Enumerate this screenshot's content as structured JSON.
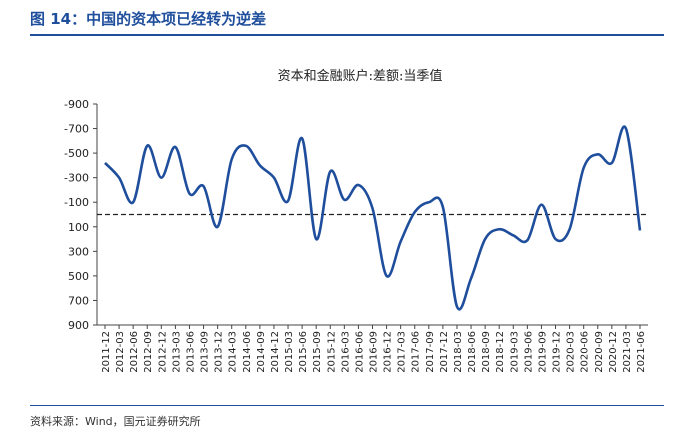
{
  "figure": {
    "title": "图 14：中国的资本项已经转为逆差",
    "source": "资料来源：Wind，国元证券研究所"
  },
  "colors": {
    "accent": "#1f4e9c",
    "series": "#1f4e9c"
  },
  "chart_data": {
    "type": "line",
    "title": "资本和金融账户:差额:当季值",
    "xlabel": "",
    "ylabel": "",
    "y_inverted": true,
    "ylim": [
      -900,
      900
    ],
    "yticks": [
      "-900",
      "-700",
      "-500",
      "-300",
      "-100",
      "100",
      "300",
      "500",
      "700",
      "900"
    ],
    "ytick_values": [
      -900,
      -700,
      -500,
      -300,
      -100,
      100,
      300,
      500,
      700,
      900
    ],
    "zero_line": "dashed",
    "grid": false,
    "legend": "none",
    "x": [
      "2011-12",
      "2012-03",
      "2012-06",
      "2012-09",
      "2012-12",
      "2013-03",
      "2013-06",
      "2013-09",
      "2013-12",
      "2014-03",
      "2014-06",
      "2014-09",
      "2014-12",
      "2015-03",
      "2015-06",
      "2015-09",
      "2015-12",
      "2016-03",
      "2016-06",
      "2016-09",
      "2016-12",
      "2017-03",
      "2017-06",
      "2017-09",
      "2017-12",
      "2018-03",
      "2018-06",
      "2018-09",
      "2018-12",
      "2019-03",
      "2019-06",
      "2019-09",
      "2019-12",
      "2020-03",
      "2020-06",
      "2020-09",
      "2020-12",
      "2021-03",
      "2021-06"
    ],
    "series": [
      {
        "values": [
          -420,
          -300,
          -100,
          -560,
          -300,
          -550,
          -170,
          -230,
          100,
          -450,
          -560,
          -400,
          -300,
          -110,
          -620,
          200,
          -350,
          -120,
          -240,
          -50,
          500,
          220,
          -20,
          -100,
          -60,
          750,
          520,
          200,
          120,
          170,
          210,
          -80,
          200,
          120,
          -380,
          -490,
          -420,
          -700,
          130
        ]
      }
    ]
  }
}
